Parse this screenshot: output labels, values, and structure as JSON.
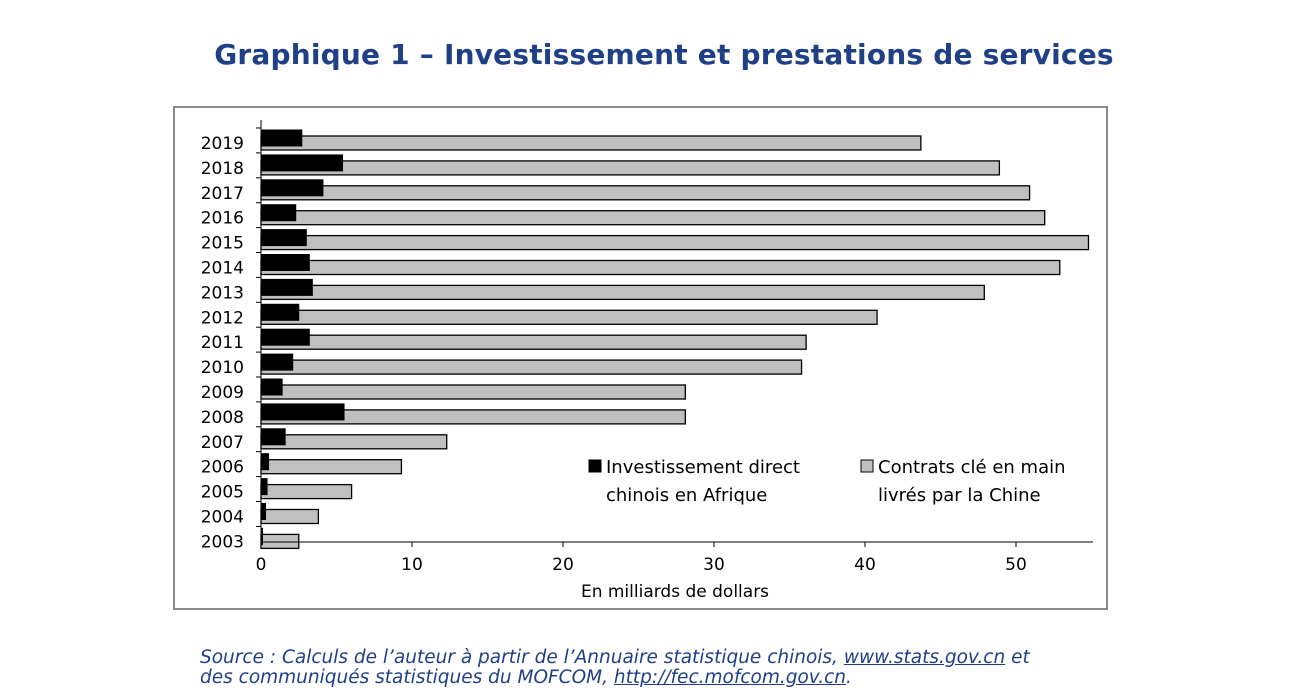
{
  "title": "Graphique 1 – Investissement et prestations de services",
  "chart_data": {
    "type": "bar",
    "orientation": "horizontal",
    "categories": [
      "2019",
      "2018",
      "2017",
      "2016",
      "2015",
      "2014",
      "2013",
      "2012",
      "2011",
      "2010",
      "2009",
      "2008",
      "2007",
      "2006",
      "2005",
      "2004",
      "2003"
    ],
    "series": [
      {
        "name": "Investissement direct chinois en Afrique",
        "color": "#000000",
        "values": [
          2.7,
          5.4,
          4.1,
          2.3,
          3.0,
          3.2,
          3.4,
          2.5,
          3.2,
          2.1,
          1.4,
          5.5,
          1.6,
          0.5,
          0.4,
          0.3,
          0.1
        ]
      },
      {
        "name": "Contrats clé en main livrés par la Chine",
        "color": "#c0c0c0",
        "values": [
          43.7,
          48.9,
          50.9,
          51.9,
          54.8,
          52.9,
          47.9,
          40.8,
          36.1,
          35.8,
          28.1,
          28.1,
          12.3,
          9.3,
          6.0,
          3.8,
          2.5
        ]
      }
    ],
    "xlabel": "En milliards de dollars",
    "ylabel": "",
    "xlim": [
      0,
      55
    ],
    "xticks": [
      "0",
      "10",
      "20",
      "30",
      "40",
      "50"
    ],
    "grid": false,
    "legend": {
      "placement": "bottom-right-inside",
      "items": [
        {
          "line1": "Investissement direct",
          "line2": "chinois en Afrique",
          "color": "#000000"
        },
        {
          "line1": "Contrats clé en main",
          "line2": "livrés par la Chine",
          "color": "#c0c0c0"
        }
      ]
    }
  },
  "source": {
    "prefix": "Source :  Calculs de l’auteur à partir de l’Annuaire statistique chinois, ",
    "link1": "www.stats.gov.cn",
    "middle": " et",
    "line2_prefix": "des communiqués statistiques du MOFCOM, ",
    "link2": "http://fec.mofcom.gov.cn",
    "suffix": "."
  }
}
